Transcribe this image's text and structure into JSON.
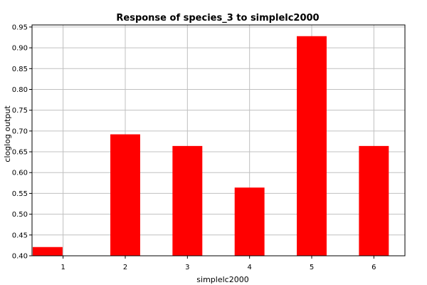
{
  "chart_data": {
    "type": "bar",
    "title": "Response of species_3 to simplelc2000",
    "xlabel": "simplelc2000",
    "ylabel": "cloglog output",
    "categories": [
      "1",
      "2",
      "3",
      "4",
      "5",
      "6"
    ],
    "series": [
      {
        "values": [
          0.421,
          0.692,
          0.664,
          0.564,
          0.928,
          0.664
        ],
        "color": "#ff0000"
      }
    ],
    "ylim": [
      0.4,
      0.955
    ],
    "yticks": [
      0.4,
      0.45,
      0.5,
      0.55,
      0.6,
      0.65,
      0.7,
      0.75,
      0.8,
      0.85,
      0.9,
      0.95
    ],
    "ytick_labels": [
      "0.40",
      "0.45",
      "0.50",
      "0.55",
      "0.60",
      "0.65",
      "0.70",
      "0.75",
      "0.80",
      "0.85",
      "0.90",
      "0.95"
    ],
    "grid": true,
    "legend": "none"
  }
}
